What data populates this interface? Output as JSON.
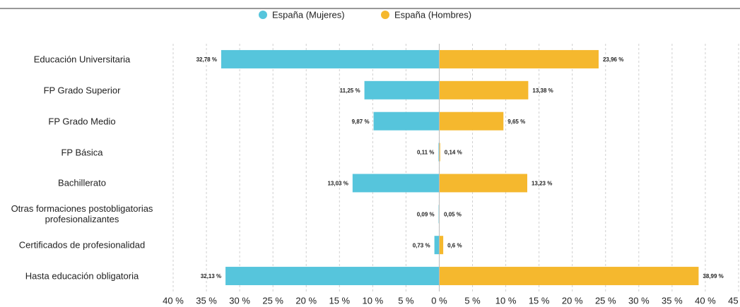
{
  "chart_data": {
    "type": "butterfly-bar",
    "categories": [
      "Educación Universitaria",
      "FP Grado Superior",
      "FP Grado Medio",
      "FP Básica",
      "Bachillerato",
      "Otras formaciones postobligatorias profesionalizantes",
      "Certificados de profesionalidad",
      "Hasta educación obligatoria"
    ],
    "series": [
      {
        "name": "España (Mujeres)",
        "color": "#56c5dc",
        "values": [
          -32.78,
          -11.25,
          -9.87,
          -0.11,
          -13.03,
          -0.09,
          -0.73,
          -32.13
        ],
        "value_labels": [
          "32,78 %",
          "11,25 %",
          "9,87 %",
          "0,11 %",
          "13,03 %",
          "0,09 %",
          "0,73 %",
          "32,13 %"
        ]
      },
      {
        "name": "España (Hombres)",
        "color": "#f5b82e",
        "values": [
          23.96,
          13.38,
          9.65,
          0.14,
          13.23,
          0.05,
          0.6,
          38.99
        ],
        "value_labels": [
          "23,96 %",
          "13,38 %",
          "9,65 %",
          "0,14 %",
          "13,23 %",
          "0,05 %",
          "0,6 %",
          "38,99 %"
        ]
      }
    ],
    "xlim": [
      -40,
      45
    ],
    "xticks": [
      {
        "value": -40,
        "label": "40 %"
      },
      {
        "value": -35,
        "label": "35 %"
      },
      {
        "value": -30,
        "label": "30 %"
      },
      {
        "value": -25,
        "label": "25 %"
      },
      {
        "value": -20,
        "label": "20 %"
      },
      {
        "value": -15,
        "label": "15 %"
      },
      {
        "value": -10,
        "label": "10 %"
      },
      {
        "value": -5,
        "label": "5 %"
      },
      {
        "value": 0,
        "label": "0 %"
      },
      {
        "value": 5,
        "label": "5 %"
      },
      {
        "value": 10,
        "label": "10 %"
      },
      {
        "value": 15,
        "label": "15 %"
      },
      {
        "value": 20,
        "label": "20 %"
      },
      {
        "value": 25,
        "label": "25 %"
      },
      {
        "value": 30,
        "label": "30 %"
      },
      {
        "value": 35,
        "label": "35 %"
      },
      {
        "value": 40,
        "label": "40 %"
      },
      {
        "value": 45,
        "label": "45 %"
      }
    ],
    "grid": true,
    "legend": "top"
  }
}
